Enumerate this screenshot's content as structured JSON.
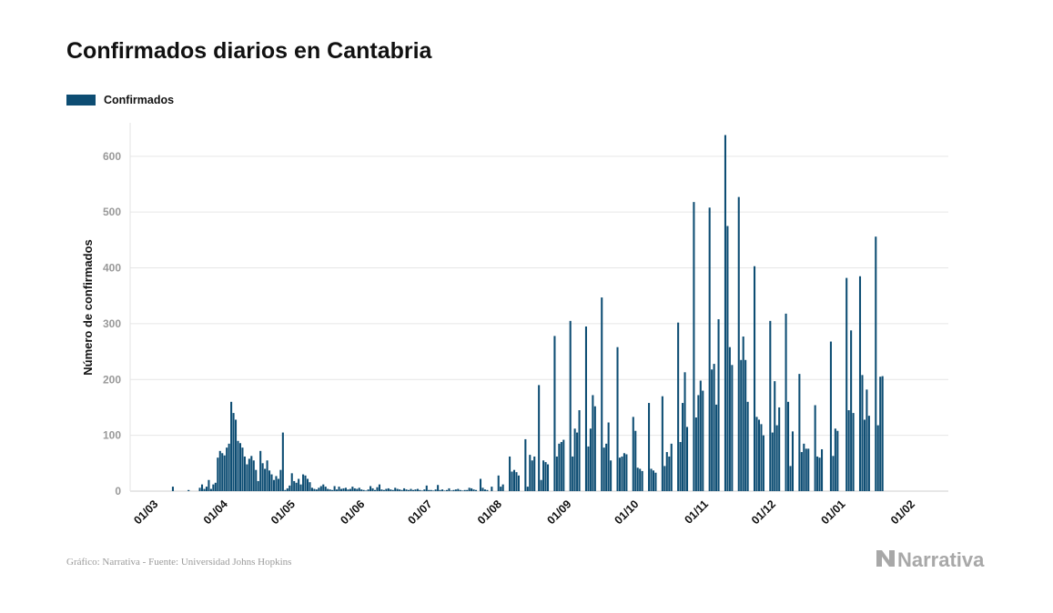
{
  "brand": {
    "name": "Narrativa",
    "icon": "narrativa-logo-icon"
  },
  "footer": {
    "source": "Gráfico: Narrativa - Fuente: Universidad Johns Hopkins"
  },
  "colors": {
    "bar": "#0d4d73",
    "grid": "#e6e6e6",
    "tick": "#999999"
  },
  "chart_data": {
    "type": "bar",
    "title": "Confirmados diarios en Cantabria",
    "ylabel": "Número de confirmados",
    "xlabel": "",
    "ylim": [
      0,
      660
    ],
    "yticks": [
      0,
      100,
      200,
      300,
      400,
      500,
      600
    ],
    "xticks": [
      {
        "label": "01/03",
        "date": "2020-03-01"
      },
      {
        "label": "01/04",
        "date": "2020-04-01"
      },
      {
        "label": "01/05",
        "date": "2020-05-01"
      },
      {
        "label": "01/06",
        "date": "2020-06-01"
      },
      {
        "label": "01/07",
        "date": "2020-07-01"
      },
      {
        "label": "01/08",
        "date": "2020-08-01"
      },
      {
        "label": "01/09",
        "date": "2020-09-01"
      },
      {
        "label": "01/10",
        "date": "2020-10-01"
      },
      {
        "label": "01/11",
        "date": "2020-11-01"
      },
      {
        "label": "01/12",
        "date": "2020-12-01"
      },
      {
        "label": "01/01",
        "date": "2021-01-01"
      },
      {
        "label": "01/02",
        "date": "2021-02-01"
      }
    ],
    "grid": true,
    "legend": "top-left",
    "series": [
      {
        "name": "Confirmados",
        "start_date": "2020-02-25",
        "end_date": "2021-01-24",
        "values": [
          0,
          0,
          0,
          0,
          0,
          0,
          0,
          0,
          0,
          0,
          0,
          0,
          0,
          0,
          0,
          0,
          0,
          8,
          0,
          0,
          0,
          0,
          0,
          0,
          2,
          0,
          0,
          0,
          0,
          6,
          12,
          4,
          8,
          20,
          4,
          12,
          15,
          60,
          72,
          68,
          64,
          78,
          85,
          160,
          140,
          128,
          90,
          86,
          78,
          62,
          48,
          58,
          63,
          55,
          38,
          18,
          72,
          50,
          40,
          55,
          37,
          30,
          20,
          27,
          22,
          38,
          105,
          2,
          5,
          10,
          32,
          18,
          15,
          22,
          12,
          30,
          28,
          22,
          16,
          6,
          4,
          3,
          6,
          9,
          12,
          8,
          4,
          3,
          2,
          9,
          3,
          8,
          4,
          5,
          6,
          3,
          4,
          8,
          5,
          4,
          6,
          3,
          2,
          1,
          3,
          9,
          5,
          2,
          7,
          12,
          3,
          2,
          4,
          5,
          3,
          2,
          6,
          4,
          3,
          2,
          5,
          3,
          2,
          4,
          2,
          3,
          4,
          2,
          1,
          3,
          10,
          2,
          2,
          1,
          3,
          11,
          2,
          3,
          1,
          2,
          5,
          1,
          2,
          3,
          4,
          2,
          1,
          2,
          2,
          6,
          5,
          3,
          2,
          0,
          22,
          6,
          3,
          2,
          0,
          8,
          0,
          0,
          28,
          8,
          12,
          0,
          0,
          62,
          35,
          38,
          34,
          28,
          0,
          0,
          93,
          8,
          65,
          55,
          62,
          0,
          190,
          20,
          55,
          52,
          48,
          0,
          0,
          278,
          62,
          85,
          88,
          92,
          0,
          0,
          305,
          62,
          112,
          105,
          145,
          0,
          0,
          295,
          80,
          112,
          172,
          152,
          0,
          0,
          347,
          78,
          85,
          123,
          55,
          0,
          0,
          258,
          60,
          62,
          68,
          66,
          0,
          0,
          133,
          108,
          42,
          40,
          36,
          0,
          0,
          158,
          40,
          37,
          33,
          0,
          0,
          170,
          45,
          70,
          62,
          85,
          0,
          0,
          302,
          88,
          158,
          213,
          115,
          0,
          0,
          518,
          132,
          172,
          198,
          180,
          0,
          0,
          508,
          218,
          228,
          155,
          308,
          0,
          0,
          638,
          475,
          258,
          226,
          0,
          0,
          527,
          235,
          277,
          235,
          160,
          0,
          0,
          403,
          133,
          128,
          120,
          100,
          0,
          0,
          305,
          105,
          197,
          118,
          150,
          0,
          0,
          318,
          160,
          45,
          107,
          0,
          0,
          210,
          70,
          85,
          76,
          76,
          0,
          0,
          154,
          62,
          60,
          75,
          0,
          0,
          0,
          268,
          63,
          112,
          108,
          0,
          0,
          0,
          382,
          145,
          288,
          140,
          0,
          0,
          385,
          208,
          128,
          182,
          135,
          0,
          0,
          456,
          118,
          205,
          206
        ]
      }
    ]
  }
}
